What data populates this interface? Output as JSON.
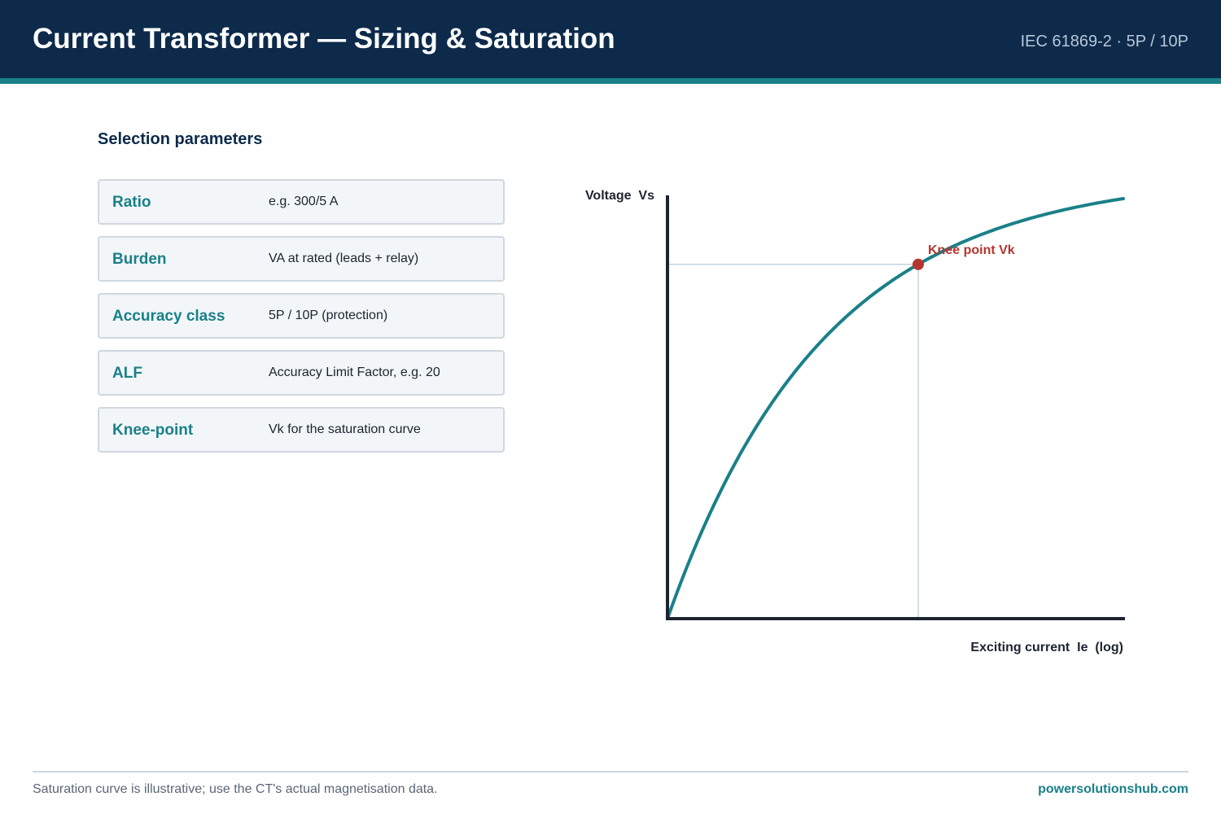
{
  "header": {
    "title": "Current Transformer — Sizing & Saturation",
    "subtitle": "IEC 61869-2 · 5P / 10P"
  },
  "selection": {
    "heading": "Selection parameters",
    "params": [
      {
        "name": "Ratio",
        "desc": "e.g. 300/5 A"
      },
      {
        "name": "Burden",
        "desc": "VA at rated (leads + relay)"
      },
      {
        "name": "Accuracy class",
        "desc": "5P / 10P (protection)"
      },
      {
        "name": "ALF",
        "desc": "Accuracy Limit Factor, e.g. 20"
      },
      {
        "name": "Knee-point",
        "desc": "Vk for the saturation curve"
      }
    ]
  },
  "chart_data": {
    "type": "line",
    "title": "",
    "xlabel": "Exciting current  Ie  (log)",
    "ylabel": "Voltage  Vs",
    "x_scale": "log",
    "grid": false,
    "knee_label": "Knee point Vk",
    "curve_color": "#1a8088",
    "knee_color": "#b5362f",
    "axis_color": "#1c2430",
    "guide_color": "#c5d3df"
  },
  "footer": {
    "note": "Saturation curve is illustrative; use the CT's actual magnetisation data.",
    "brand": "powersolutionshub.com"
  }
}
